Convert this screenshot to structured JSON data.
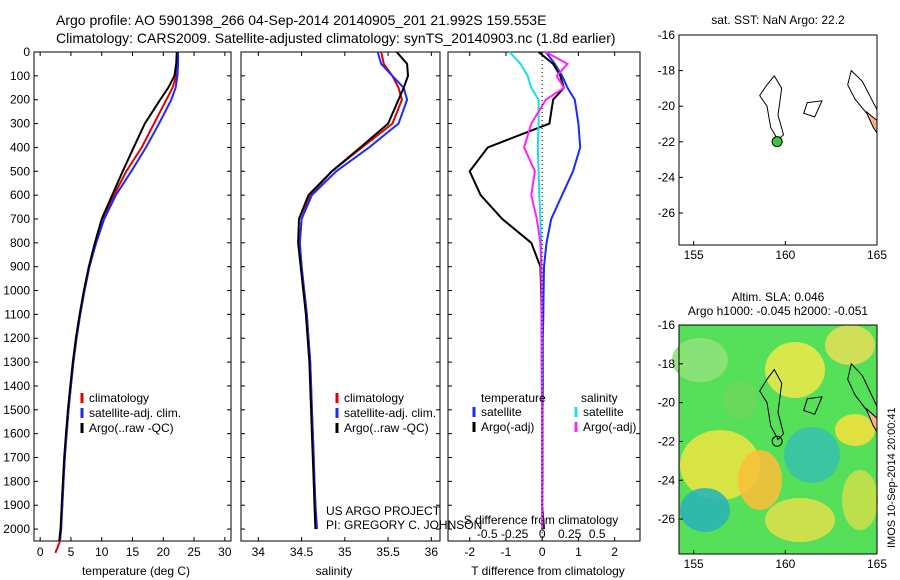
{
  "header": {
    "line1": "Argo profile: AO 5901398_266 04-Sep-2014 20140905_201 21.992S 159.553E",
    "line2": "Climatology: CARS2009. Satellite-adjusted climatology: synTS_20140903.nc (1.8d earlier)"
  },
  "depth_ticks": [
    0,
    100,
    200,
    300,
    400,
    500,
    600,
    700,
    800,
    900,
    1000,
    1100,
    1200,
    1300,
    1400,
    1500,
    1600,
    1700,
    1800,
    1900,
    2000
  ],
  "colors": {
    "climatology": "#e00000",
    "satellite": "#1a2bff",
    "argo": "#000000",
    "sal_satellite": "#18e0e8",
    "sal_argo": "#ff22ff",
    "land": "#f4b28a"
  },
  "panels": {
    "temperature": {
      "xlabel": "temperature (deg C)",
      "xticks": [
        "0",
        "5",
        "10",
        "15",
        "20",
        "25",
        "30"
      ],
      "legend": [
        "climatology",
        "satellite-adj. clim.",
        "Argo(..raw -QC)"
      ]
    },
    "salinity": {
      "xlabel": "salinity",
      "xticks": [
        "34",
        "34.5",
        "35",
        "35.5",
        "36"
      ],
      "legend": [
        "climatology",
        "satellite-adj. clim.",
        "Argo(..raw -QC)"
      ],
      "credit1": "US ARGO PROJECT",
      "credit2": "PI: GREGORY C. JOHNSON"
    },
    "difference": {
      "xlabel": "T difference from climatology",
      "xlabel_top": "S difference from climatology",
      "xticks": [
        "-2",
        "-1",
        "0",
        "1",
        "2"
      ],
      "sticks": [
        "-0.5",
        "-0.25",
        "0",
        "0.25",
        "0.5"
      ],
      "legend_temperature": [
        "temperature",
        "satellite",
        "Argo(-adj)"
      ],
      "legend_salinity": [
        "salinity",
        "satellite",
        "Argo(-adj)"
      ]
    }
  },
  "map_top": {
    "title": "sat. SST: NaN Argo: 22.2",
    "yticks": [
      "-16",
      "-18",
      "-20",
      "-22",
      "-24",
      "-26"
    ],
    "xticks": [
      "155",
      "160",
      "165"
    ]
  },
  "map_bottom": {
    "title1": "Altim. SLA: 0.046",
    "title2": "Argo h1000: -0.045 h2000: -0.051",
    "yticks": [
      "-16",
      "-18",
      "-20",
      "-22",
      "-24",
      "-26"
    ],
    "xticks": [
      "155",
      "160",
      "165"
    ]
  },
  "stamp": "IMOS 10-Sep-2014 20:00:41",
  "chart_data": [
    {
      "type": "line",
      "title": "",
      "xlabel": "temperature (deg C)",
      "ylabel": "",
      "xlim": [
        -1,
        31
      ],
      "ylim": [
        2050,
        0
      ],
      "series": [
        {
          "name": "climatology",
          "x": [
            22.3,
            22.3,
            22.1,
            21.5,
            20.5,
            18.5,
            16.5,
            14.0,
            12.0,
            10.2,
            9.0,
            8.0,
            7.2,
            6.5,
            5.9,
            5.4,
            5.0,
            4.6,
            4.3,
            4.0,
            3.8,
            3.6,
            3.4,
            3.2,
            3.1,
            2.9,
            2.8,
            2.6,
            2.5
          ],
          "y": [
            0,
            50,
            100,
            150,
            200,
            300,
            400,
            500,
            600,
            700,
            800,
            900,
            1000,
            1100,
            1200,
            1300,
            1400,
            1500,
            1600,
            1700,
            1800,
            1900,
            2000,
            2050,
            2060,
            2070,
            2080,
            2090,
            2100
          ]
        },
        {
          "name": "satellite-adj. clim.",
          "x": [
            22.4,
            22.4,
            22.3,
            22.0,
            21.3,
            19.3,
            17.2,
            14.8,
            12.3,
            10.4,
            9.1,
            8.0,
            7.2,
            6.5,
            5.9,
            5.4,
            5.0,
            4.6,
            4.3,
            4.0,
            3.8,
            3.6,
            3.4,
            3.2
          ],
          "y": [
            0,
            50,
            100,
            150,
            200,
            300,
            400,
            500,
            600,
            700,
            800,
            900,
            1000,
            1100,
            1200,
            1300,
            1400,
            1500,
            1600,
            1700,
            1800,
            1900,
            2000,
            2050
          ]
        },
        {
          "name": "Argo(..raw -QC)",
          "x": [
            22.2,
            22.1,
            21.8,
            20.8,
            19.5,
            17.0,
            15.2,
            13.4,
            11.7,
            10.0,
            8.9,
            7.9,
            7.1,
            6.4,
            5.8,
            5.3,
            4.9,
            4.5,
            4.2,
            3.9,
            3.7,
            3.5,
            3.3,
            3.1
          ],
          "y": [
            0,
            50,
            100,
            150,
            200,
            300,
            400,
            500,
            600,
            700,
            800,
            900,
            1000,
            1100,
            1200,
            1300,
            1400,
            1500,
            1600,
            1700,
            1800,
            1900,
            2000,
            2050
          ]
        }
      ]
    },
    {
      "type": "line",
      "title": "",
      "xlabel": "salinity",
      "ylabel": "",
      "xlim": [
        33.8,
        36.1
      ],
      "ylim": [
        2050,
        0
      ],
      "series": [
        {
          "name": "climatology",
          "x": [
            35.42,
            35.45,
            35.55,
            35.62,
            35.66,
            35.55,
            35.2,
            34.85,
            34.6,
            34.5,
            34.48,
            34.5,
            34.53,
            34.56,
            34.58,
            34.6,
            34.61,
            34.62,
            34.63,
            34.64,
            34.65,
            34.66,
            34.67
          ],
          "y": [
            0,
            50,
            100,
            150,
            200,
            300,
            400,
            500,
            600,
            700,
            800,
            900,
            1000,
            1100,
            1200,
            1300,
            1400,
            1500,
            1600,
            1700,
            1800,
            1900,
            2000
          ]
        },
        {
          "name": "satellite-adj. clim.",
          "x": [
            35.38,
            35.42,
            35.55,
            35.68,
            35.72,
            35.62,
            35.28,
            34.9,
            34.62,
            34.5,
            34.48,
            34.5,
            34.53,
            34.56,
            34.58,
            34.6,
            34.61,
            34.62,
            34.63,
            34.64,
            34.65,
            34.66,
            34.68
          ],
          "y": [
            0,
            50,
            100,
            150,
            200,
            300,
            400,
            500,
            600,
            700,
            800,
            900,
            1000,
            1100,
            1200,
            1300,
            1400,
            1500,
            1600,
            1700,
            1800,
            1900,
            2000
          ]
        },
        {
          "name": "Argo(..raw -QC)",
          "x": [
            35.6,
            35.72,
            35.73,
            35.68,
            35.62,
            35.5,
            35.18,
            34.85,
            34.58,
            34.47,
            34.46,
            34.49,
            34.52,
            34.55,
            34.57,
            34.59,
            34.6,
            34.61,
            34.62,
            34.63,
            34.64,
            34.65,
            34.66
          ],
          "y": [
            0,
            50,
            100,
            150,
            200,
            300,
            400,
            500,
            600,
            700,
            800,
            900,
            1000,
            1100,
            1200,
            1300,
            1400,
            1500,
            1600,
            1700,
            1800,
            1900,
            2000
          ]
        }
      ]
    },
    {
      "type": "line",
      "title": "",
      "xlabel": "T difference from climatology",
      "ylabel": "",
      "xlim": [
        -2.6,
        2.7
      ],
      "ylim": [
        2050,
        0
      ],
      "series": [
        {
          "name": "temperature satellite",
          "x": [
            0.1,
            0.35,
            0.55,
            0.7,
            0.9,
            1.0,
            1.05,
            0.85,
            0.55,
            0.25,
            0.12,
            0.05,
            0.04,
            0.03,
            0.02,
            0.02,
            0.02,
            0.01,
            0.01,
            0.01,
            0.01,
            0.0,
            0.0
          ],
          "y": [
            0,
            50,
            100,
            150,
            200,
            300,
            400,
            500,
            600,
            700,
            800,
            900,
            1000,
            1100,
            1200,
            1300,
            1400,
            1500,
            1600,
            1700,
            1800,
            1900,
            2000
          ]
        },
        {
          "name": "temperature Argo(-adj)",
          "x": [
            -0.1,
            0.3,
            0.5,
            0.6,
            0.3,
            0.2,
            -1.5,
            -2.0,
            -1.7,
            -1.1,
            -0.3,
            -0.05,
            -0.03,
            -0.02,
            -0.01,
            -0.01,
            0.0,
            0.0,
            0.0,
            0.0,
            0.0,
            0.0,
            0.05
          ],
          "y": [
            0,
            50,
            100,
            150,
            200,
            300,
            400,
            500,
            600,
            700,
            800,
            900,
            1000,
            1100,
            1200,
            1300,
            1400,
            1500,
            1600,
            1700,
            1800,
            1900,
            2000
          ]
        },
        {
          "name": "salinity satellite",
          "x": [
            -0.9,
            -0.6,
            -0.4,
            -0.3,
            -0.1,
            -0.1,
            -0.12,
            -0.1,
            -0.08,
            -0.05,
            -0.03,
            -0.02,
            -0.01,
            -0.01,
            0.0,
            0.0,
            0.0,
            0.0,
            0.0,
            0.0,
            0.0,
            0.0,
            0.0
          ],
          "y": [
            0,
            50,
            100,
            150,
            200,
            300,
            400,
            500,
            600,
            700,
            800,
            900,
            1000,
            1100,
            1200,
            1300,
            1400,
            1500,
            1600,
            1700,
            1800,
            1900,
            2000
          ]
        },
        {
          "name": "salinity Argo(-adj)",
          "x": [
            0.1,
            0.7,
            0.4,
            0.6,
            0.1,
            -0.3,
            -0.5,
            -0.2,
            -0.3,
            -0.15,
            -0.05,
            -0.03,
            -0.02,
            -0.02,
            -0.01,
            -0.01,
            -0.01,
            0.0,
            0.0,
            0.0,
            0.0,
            0.0,
            0.0
          ],
          "y": [
            0,
            50,
            100,
            150,
            200,
            300,
            400,
            500,
            600,
            700,
            800,
            900,
            1000,
            1100,
            1200,
            1300,
            1400,
            1500,
            1600,
            1700,
            1800,
            1900,
            2000
          ]
        }
      ]
    }
  ]
}
